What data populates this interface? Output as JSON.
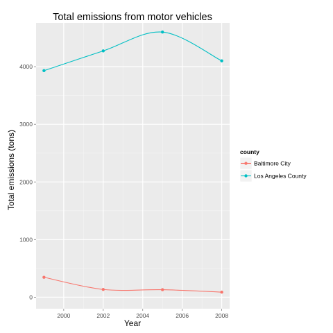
{
  "chart_data": {
    "type": "line",
    "title": "Total emissions from motor vehicles",
    "xlabel": "Year",
    "ylabel": "Total emissions (tons)",
    "xlim": [
      1998.6,
      2008.4
    ],
    "ylim": [
      -200,
      4760
    ],
    "x_ticks": [
      2000,
      2002,
      2004,
      2006,
      2008
    ],
    "y_ticks": [
      0,
      1000,
      2000,
      3000,
      4000
    ],
    "x": [
      1999,
      2002,
      2005,
      2008
    ],
    "series": [
      {
        "name": "Baltimore City",
        "color": "#F8766D",
        "values": [
          346,
          134,
          130,
          88
        ]
      },
      {
        "name": "Los Angeles County",
        "color": "#00BFC4",
        "values": [
          3931,
          4274,
          4601,
          4101
        ]
      }
    ],
    "legend": {
      "title": "county",
      "position": "right"
    },
    "grid": true,
    "smoothed": true,
    "panel_background": "#ebebeb",
    "grid_color": "#ffffff"
  }
}
